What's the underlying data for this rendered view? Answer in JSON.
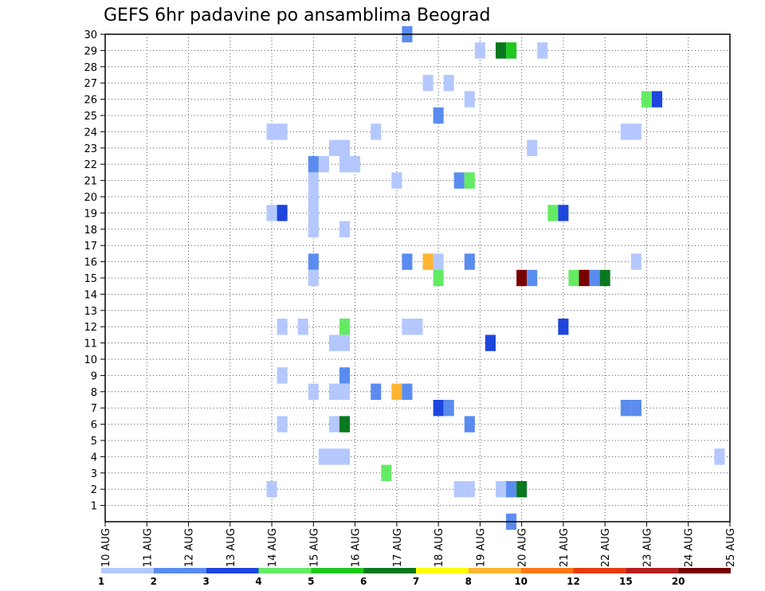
{
  "chart_data": {
    "type": "heatmap",
    "title": "GEFS 6hr padavine po ansamblima Beograd",
    "xlabel": "",
    "ylabel": "",
    "x_tick_labels": [
      "10 AUG",
      "11 AUG",
      "12 AUG",
      "13 AUG",
      "14 AUG",
      "15 AUG",
      "16 AUG",
      "17 AUG",
      "18 AUG",
      "19 AUG",
      "20 AUG",
      "21 AUG",
      "22 AUG",
      "23 AUG",
      "24 AUG",
      "25 AUG"
    ],
    "y_tick_labels": [
      "1",
      "2",
      "3",
      "4",
      "5",
      "6",
      "7",
      "8",
      "9",
      "10",
      "11",
      "12",
      "13",
      "14",
      "15",
      "16",
      "17",
      "18",
      "19",
      "20",
      "21",
      "22",
      "23",
      "24",
      "25",
      "26",
      "27",
      "28",
      "29",
      "30"
    ],
    "xlim_steps": [
      0,
      60
    ],
    "ylim_members": [
      0,
      30
    ],
    "grid": true,
    "colorbar": {
      "placement": "bottom",
      "labels": [
        "1",
        "2",
        "3",
        "4",
        "5",
        "6",
        "7",
        "8",
        "10",
        "12",
        "15",
        "20"
      ],
      "colors": [
        "#b4c8ff",
        "#5a8cf0",
        "#1e46dc",
        "#64eb64",
        "#1ec81e",
        "#0a781e",
        "#ffff00",
        "#ffb432",
        "#ff7814",
        "#e63c0a",
        "#b41e1e",
        "#780000"
      ]
    },
    "cells": [
      {
        "step": 16,
        "member": 24,
        "value": 1
      },
      {
        "step": 17,
        "member": 24,
        "value": 1
      },
      {
        "step": 16,
        "member": 19,
        "value": 1
      },
      {
        "step": 17,
        "member": 19,
        "value": 3
      },
      {
        "step": 17,
        "member": 12,
        "value": 1
      },
      {
        "step": 17,
        "member": 9,
        "value": 1
      },
      {
        "step": 17,
        "member": 6,
        "value": 1
      },
      {
        "step": 16,
        "member": 2,
        "value": 1
      },
      {
        "step": 19,
        "member": 12,
        "value": 1
      },
      {
        "step": 20,
        "member": 22,
        "value": 2
      },
      {
        "step": 21,
        "member": 22,
        "value": 1
      },
      {
        "step": 20,
        "member": 21,
        "value": 1
      },
      {
        "step": 20,
        "member": 20,
        "value": 1
      },
      {
        "step": 20,
        "member": 19,
        "value": 1
      },
      {
        "step": 20,
        "member": 18,
        "value": 1
      },
      {
        "step": 20,
        "member": 16,
        "value": 2
      },
      {
        "step": 20,
        "member": 15,
        "value": 1
      },
      {
        "step": 20,
        "member": 8,
        "value": 1
      },
      {
        "step": 21,
        "member": 4,
        "value": 1
      },
      {
        "step": 22,
        "member": 8,
        "value": 1
      },
      {
        "step": 22,
        "member": 4,
        "value": 1
      },
      {
        "step": 22,
        "member": 23,
        "value": 1
      },
      {
        "step": 23,
        "member": 23,
        "value": 1
      },
      {
        "step": 23,
        "member": 22,
        "value": 1
      },
      {
        "step": 24,
        "member": 22,
        "value": 1
      },
      {
        "step": 23,
        "member": 18,
        "value": 1
      },
      {
        "step": 23,
        "member": 12,
        "value": 4
      },
      {
        "step": 22,
        "member": 11,
        "value": 1
      },
      {
        "step": 23,
        "member": 11,
        "value": 1
      },
      {
        "step": 23,
        "member": 9,
        "value": 2
      },
      {
        "step": 23,
        "member": 8,
        "value": 1
      },
      {
        "step": 22,
        "member": 6,
        "value": 1
      },
      {
        "step": 23,
        "member": 6,
        "value": 6
      },
      {
        "step": 23,
        "member": 4,
        "value": 1
      },
      {
        "step": 26,
        "member": 24,
        "value": 1
      },
      {
        "step": 26,
        "member": 8,
        "value": 2
      },
      {
        "step": 27,
        "member": 3,
        "value": 4
      },
      {
        "step": 28,
        "member": 21,
        "value": 1
      },
      {
        "step": 28,
        "member": 8,
        "value": 8
      },
      {
        "step": 29,
        "member": 30,
        "value": 2
      },
      {
        "step": 29,
        "member": 16,
        "value": 2
      },
      {
        "step": 29,
        "member": 12,
        "value": 1
      },
      {
        "step": 30,
        "member": 12,
        "value": 1
      },
      {
        "step": 29,
        "member": 8,
        "value": 2
      },
      {
        "step": 31,
        "member": 27,
        "value": 1
      },
      {
        "step": 31,
        "member": 16,
        "value": 8
      },
      {
        "step": 32,
        "member": 16,
        "value": 1
      },
      {
        "step": 32,
        "member": 25,
        "value": 2
      },
      {
        "step": 32,
        "member": 15,
        "value": 4
      },
      {
        "step": 32,
        "member": 7,
        "value": 3
      },
      {
        "step": 33,
        "member": 7,
        "value": 2
      },
      {
        "step": 33,
        "member": 27,
        "value": 1
      },
      {
        "step": 34,
        "member": 21,
        "value": 2
      },
      {
        "step": 35,
        "member": 21,
        "value": 4
      },
      {
        "step": 34,
        "member": 2,
        "value": 1
      },
      {
        "step": 35,
        "member": 2,
        "value": 1
      },
      {
        "step": 35,
        "member": 26,
        "value": 1
      },
      {
        "step": 35,
        "member": 16,
        "value": 2
      },
      {
        "step": 35,
        "member": 6,
        "value": 2
      },
      {
        "step": 36,
        "member": 29,
        "value": 1
      },
      {
        "step": 37,
        "member": 11,
        "value": 3
      },
      {
        "step": 38,
        "member": 29,
        "value": 6
      },
      {
        "step": 39,
        "member": 29,
        "value": 5
      },
      {
        "step": 38,
        "member": 2,
        "value": 1
      },
      {
        "step": 39,
        "member": 2,
        "value": 2
      },
      {
        "step": 40,
        "member": 2,
        "value": 6
      },
      {
        "step": 39,
        "member": 0,
        "value": 2
      },
      {
        "step": 40,
        "member": 15,
        "value": 20
      },
      {
        "step": 41,
        "member": 15,
        "value": 2
      },
      {
        "step": 41,
        "member": 23,
        "value": 1
      },
      {
        "step": 42,
        "member": 29,
        "value": 1
      },
      {
        "step": 43,
        "member": 19,
        "value": 4
      },
      {
        "step": 44,
        "member": 19,
        "value": 3
      },
      {
        "step": 44,
        "member": 12,
        "value": 3
      },
      {
        "step": 45,
        "member": 15,
        "value": 4
      },
      {
        "step": 46,
        "member": 15,
        "value": 20
      },
      {
        "step": 47,
        "member": 15,
        "value": 2
      },
      {
        "step": 48,
        "member": 15,
        "value": 6
      },
      {
        "step": 50,
        "member": 24,
        "value": 1
      },
      {
        "step": 51,
        "member": 24,
        "value": 1
      },
      {
        "step": 51,
        "member": 16,
        "value": 1
      },
      {
        "step": 50,
        "member": 7,
        "value": 2
      },
      {
        "step": 51,
        "member": 7,
        "value": 2
      },
      {
        "step": 52,
        "member": 26,
        "value": 4
      },
      {
        "step": 53,
        "member": 26,
        "value": 3
      },
      {
        "step": 59,
        "member": 4,
        "value": 1
      }
    ]
  }
}
